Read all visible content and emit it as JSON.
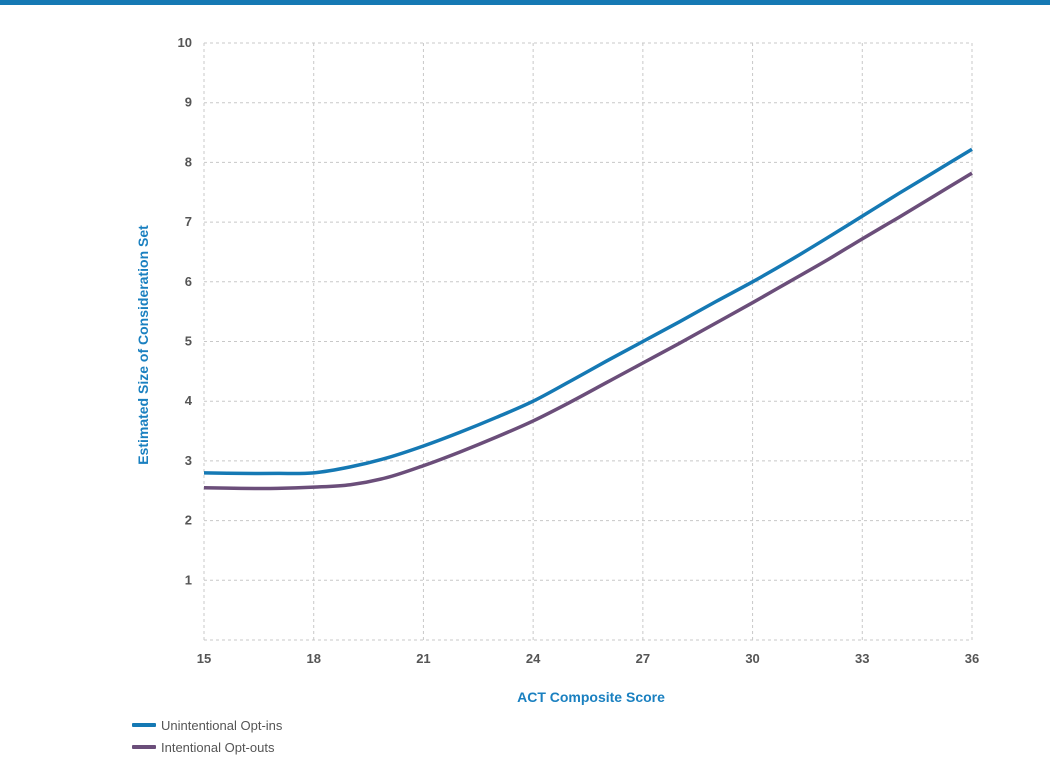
{
  "chart_data": {
    "type": "line",
    "title": "",
    "xlabel": "ACT Composite Score",
    "ylabel": "Estimated Size of Consideration Set",
    "xlim": [
      15,
      36
    ],
    "ylim": [
      0,
      10
    ],
    "x_ticks": [
      "15",
      "18",
      "21",
      "24",
      "27",
      "30",
      "33",
      "36"
    ],
    "y_ticks": [
      "1",
      "2",
      "3",
      "4",
      "5",
      "6",
      "7",
      "8",
      "9",
      "10"
    ],
    "grid": true,
    "legend_position": "bottom-left",
    "series": [
      {
        "name": "Unintentional Opt-ins",
        "color": "#1579b4",
        "points": [
          [
            15,
            2.8
          ],
          [
            16,
            2.79
          ],
          [
            17,
            2.79
          ],
          [
            18,
            2.8
          ],
          [
            19,
            2.9
          ],
          [
            20,
            3.05
          ],
          [
            21,
            3.25
          ],
          [
            22,
            3.48
          ],
          [
            23,
            3.73
          ],
          [
            24,
            4.0
          ],
          [
            25,
            4.33
          ],
          [
            26,
            4.67
          ],
          [
            27,
            5.0
          ],
          [
            28,
            5.33
          ],
          [
            29,
            5.67
          ],
          [
            30,
            6.0
          ],
          [
            31,
            6.35
          ],
          [
            32,
            6.72
          ],
          [
            33,
            7.1
          ],
          [
            34,
            7.48
          ],
          [
            35,
            7.85
          ],
          [
            36,
            8.22
          ]
        ]
      },
      {
        "name": "Intentional Opt-outs",
        "color": "#6b4e7a",
        "points": [
          [
            15,
            2.55
          ],
          [
            16,
            2.54
          ],
          [
            17,
            2.54
          ],
          [
            18,
            2.56
          ],
          [
            19,
            2.6
          ],
          [
            20,
            2.72
          ],
          [
            21,
            2.92
          ],
          [
            22,
            3.15
          ],
          [
            23,
            3.4
          ],
          [
            24,
            3.67
          ],
          [
            25,
            3.98
          ],
          [
            26,
            4.31
          ],
          [
            27,
            4.64
          ],
          [
            28,
            4.97
          ],
          [
            29,
            5.31
          ],
          [
            30,
            5.65
          ],
          [
            31,
            6.0
          ],
          [
            32,
            6.35
          ],
          [
            33,
            6.72
          ],
          [
            34,
            7.08
          ],
          [
            35,
            7.45
          ],
          [
            36,
            7.82
          ]
        ]
      }
    ]
  }
}
